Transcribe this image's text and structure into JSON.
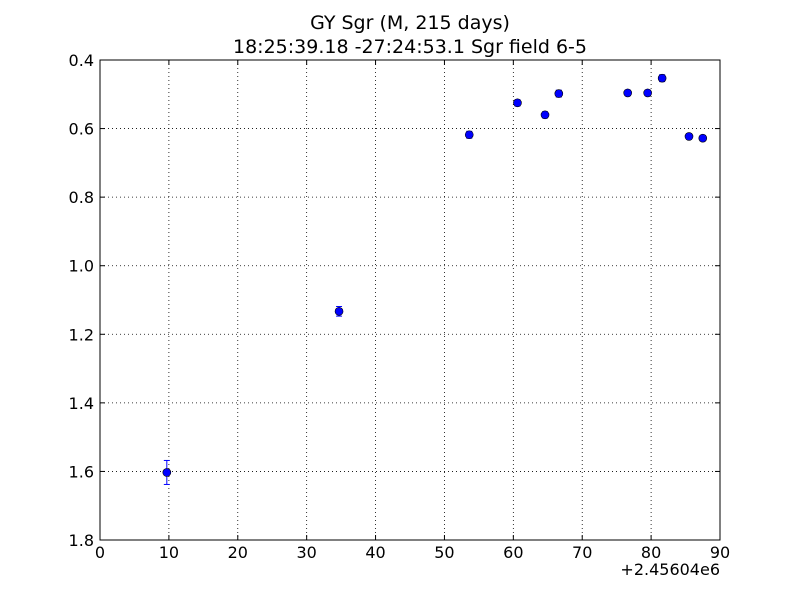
{
  "chart_data": {
    "type": "scatter",
    "title": "GY Sgr  (M, 215 days)",
    "subtitle": "18:25:39.18 -27:24:53.1 Sgr field 6-5",
    "xlabel": "",
    "ylabel": "",
    "x_offset_label": "+2.45604e6",
    "xlim": [
      0,
      90
    ],
    "ylim": [
      0.4,
      1.8
    ],
    "y_inverted": true,
    "grid": true,
    "x_ticks": [
      0,
      10,
      20,
      30,
      40,
      50,
      60,
      70,
      80,
      90
    ],
    "x_tick_labels": [
      "0",
      "10",
      "20",
      "30",
      "40",
      "50",
      "60",
      "70",
      "80",
      "90"
    ],
    "y_ticks": [
      0.4,
      0.6,
      0.8,
      1.0,
      1.2,
      1.4,
      1.6,
      1.8
    ],
    "y_tick_labels": [
      "0.4",
      "0.6",
      "0.8",
      "1.0",
      "1.2",
      "1.4",
      "1.6",
      "1.8"
    ],
    "marker_color": "#0000ff",
    "points": [
      {
        "x": 9.7,
        "y": 1.603,
        "err": 0.035
      },
      {
        "x": 34.7,
        "y": 1.133,
        "err": 0.014
      },
      {
        "x": 53.6,
        "y": 0.618,
        "err": 0.01
      },
      {
        "x": 60.6,
        "y": 0.525,
        "err": 0.009
      },
      {
        "x": 64.6,
        "y": 0.56,
        "err": 0.009
      },
      {
        "x": 66.6,
        "y": 0.498,
        "err": 0.01
      },
      {
        "x": 76.6,
        "y": 0.496,
        "err": 0.008
      },
      {
        "x": 79.5,
        "y": 0.496,
        "err": 0.008
      },
      {
        "x": 81.6,
        "y": 0.453,
        "err": 0.01
      },
      {
        "x": 85.5,
        "y": 0.623,
        "err": 0.008
      },
      {
        "x": 87.5,
        "y": 0.628,
        "err": 0.008
      }
    ]
  }
}
